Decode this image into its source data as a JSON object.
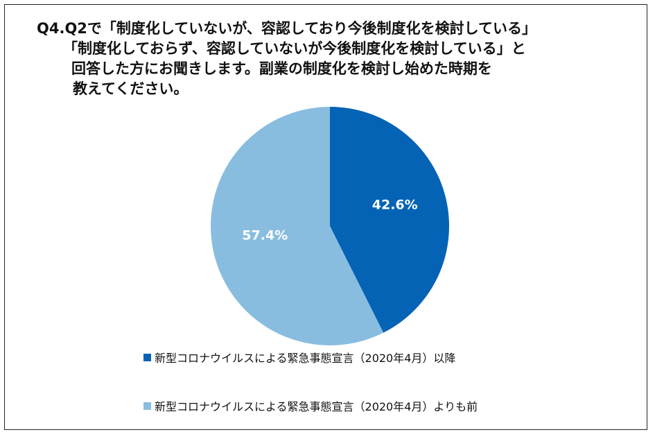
{
  "colors": {
    "series1": "#0563B5",
    "series2": "#88BDE0",
    "border": "#222222"
  },
  "chart_data": {
    "type": "pie",
    "title_lines": [
      "Q4.Q2で「制度化していないが、容認しており今後制度化を検討している」",
      "「制度化しておらず、容認していないが今後制度化を検討している」と",
      "回答した方にお聞きします。副業の制度化を検討し始めた時期を",
      "教えてください。"
    ],
    "slices": [
      {
        "name": "新型コロナウイルスによる緊急事態宣言（2020年4月）以降",
        "value": 42.6,
        "label": "42.6%",
        "color": "#0563B5"
      },
      {
        "name": "新型コロナウイルスによる緊急事態宣言（2020年4月）よりも前",
        "value": 57.4,
        "label": "57.4%",
        "color": "#88BDE0"
      }
    ],
    "start": "12 o'clock",
    "direction": "clockwise",
    "legend_position": "bottom-left"
  }
}
